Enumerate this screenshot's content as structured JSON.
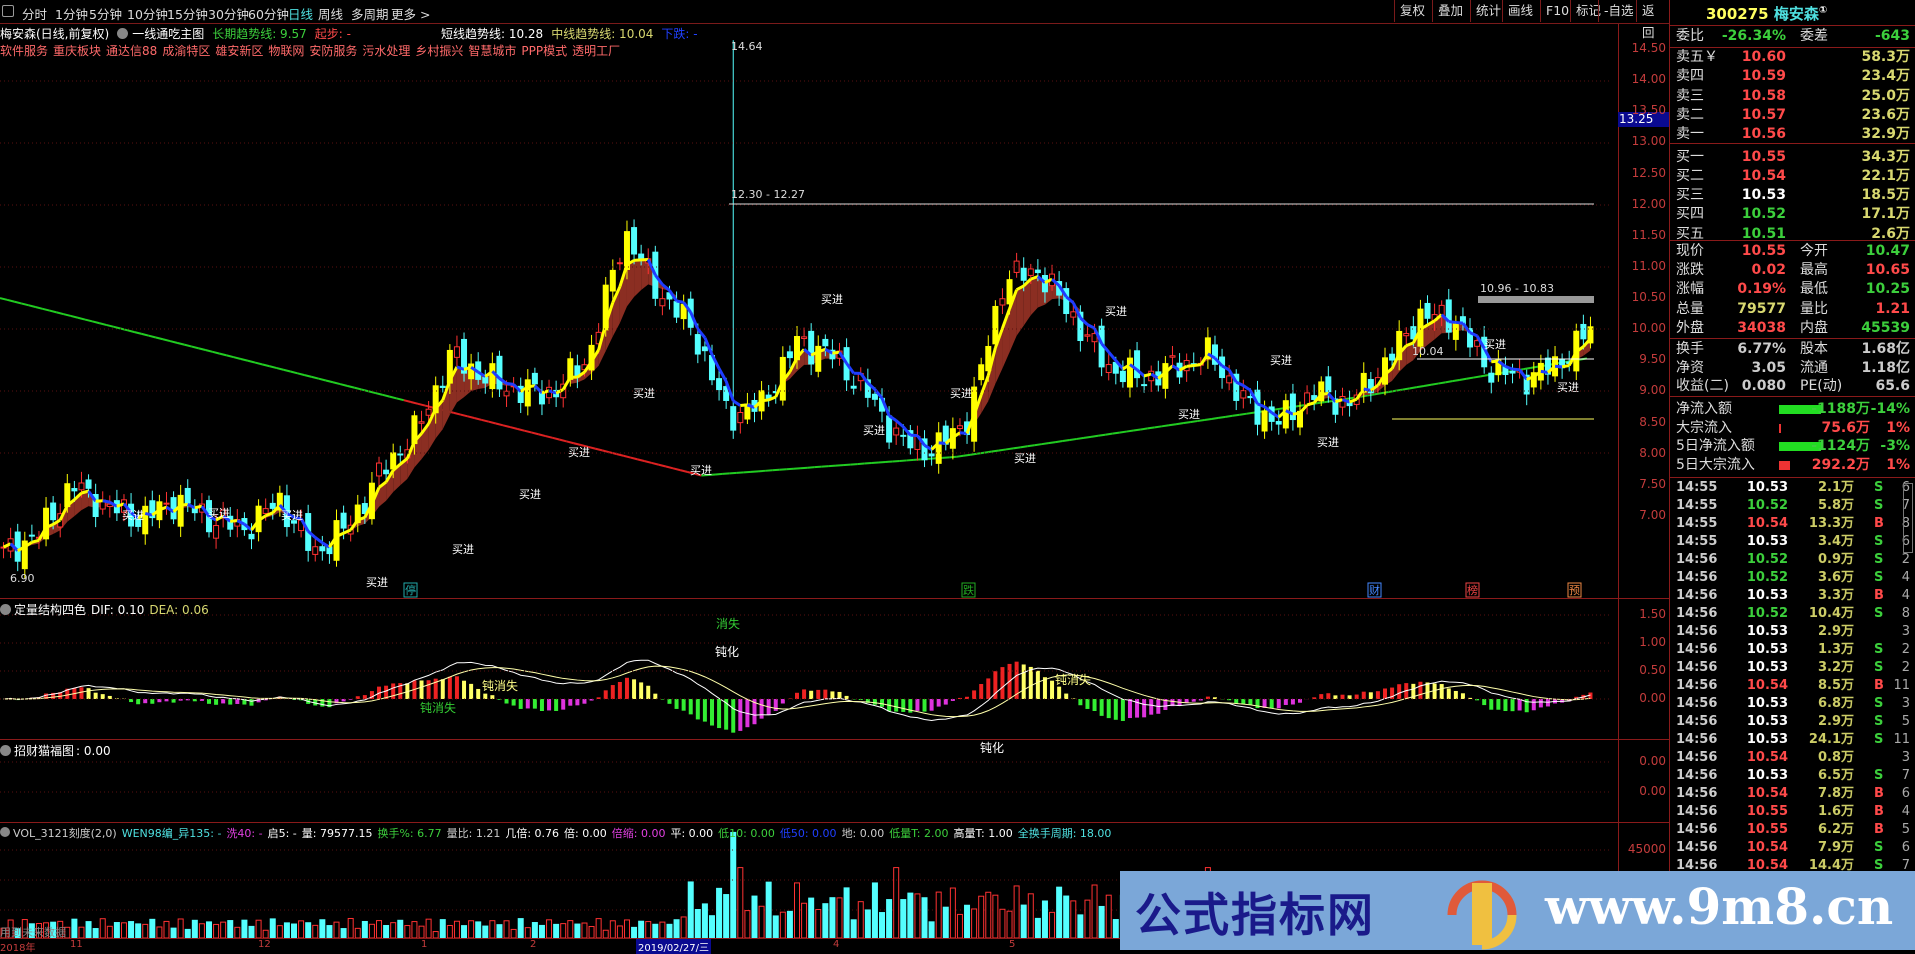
{
  "toolbar": {
    "periods": [
      "分时",
      "1分钟",
      "5分钟",
      "10分钟",
      "15分钟",
      "30分钟",
      "60分钟",
      "日线",
      "周线",
      "多周期",
      "更多 >"
    ],
    "active_period": "日线",
    "buttons": [
      "复权",
      "叠加",
      "统计",
      "画线",
      "F10",
      "标记",
      "-自选",
      "返回"
    ]
  },
  "chart_header": {
    "stock": "梅安森(日线,前复权)",
    "formula": "一线通吃主图",
    "long_trend": "长期趋势线: 9.57",
    "start": "起步: -",
    "short_trend": "短线趋势线: 10.28",
    "mid_trend": "中线趋势线: 10.04",
    "fall": "下跌: -"
  },
  "concepts": [
    "软件服务",
    "重庆板块",
    "通达信88",
    "成渝特区",
    "雄安新区",
    "物联网",
    "安防服务",
    "污水处理",
    "乡村振兴",
    "智慧城市",
    "PPP模式",
    "透明工厂"
  ],
  "price_axis": {
    "ticks": [
      "14.50",
      "14.00",
      "13.50",
      "13.00",
      "12.50",
      "12.00",
      "11.50",
      "11.00",
      "10.50",
      "10.00",
      "9.50",
      "9.00",
      "8.50",
      "8.00",
      "7.50",
      "7.00"
    ],
    "cursor_value": "13.25"
  },
  "main_chart": {
    "close_path": [
      6.4,
      6.7,
      7.5,
      7.15,
      6.95,
      7.25,
      6.95,
      6.8,
      7.25,
      6.4,
      6.85,
      7.75,
      8.4,
      9.6,
      9.2,
      9.0,
      9.0,
      9.6,
      11.55,
      10.6,
      10.0,
      8.6,
      8.8,
      9.8,
      9.6,
      9.0,
      8.2,
      8.05,
      8.6,
      10.8,
      10.95,
      10.2,
      9.4,
      9.2,
      9.4,
      9.6,
      8.8,
      8.5,
      9.0,
      8.8,
      9.4,
      10.2,
      10.2,
      9.4,
      9.2,
      9.4,
      10.0
    ],
    "buy_label": "买进",
    "high_label": "14.64",
    "range_label_1": "12.30 - 12.27",
    "range_label_2": "10.96 - 10.83",
    "line_label": "10.04",
    "low_label": "6.90",
    "events": [
      "停",
      "跌",
      "财",
      "榜",
      "预"
    ],
    "colors": {
      "up": "#ff3232",
      "down": "#54ffff",
      "long_ma": "#22cc22",
      "rise": "#ffff00",
      "fall": "#1e3cff",
      "fill": "#8b2e22"
    }
  },
  "macd": {
    "title": "定量结构四色",
    "dif": "DIF: 0.10",
    "dea": "DEA: 0.06",
    "ticks": [
      "1.50",
      "1.00",
      "0.50",
      "0.00"
    ],
    "labels": [
      "消失",
      "钝化",
      "钝消失",
      "钝消失",
      "钝化",
      "钝消失"
    ]
  },
  "panel2": {
    "title": "招财猫福图",
    "value": ": 0.00",
    "ticks": [
      "0.00",
      "0.00"
    ]
  },
  "volume": {
    "items": [
      {
        "text": "VOL_3121刻度(2,0)",
        "cls": "gry"
      },
      {
        "text": "WEN98编_异135: -",
        "cls": "cyn"
      },
      {
        "text": "洗40: -",
        "cls": "mag"
      },
      {
        "text": "启5: -",
        "cls": "wht"
      },
      {
        "text": "量: 79577.15",
        "cls": "wht"
      },
      {
        "text": "换手%: 6.77",
        "cls": "grn"
      },
      {
        "text": "量比: 1.21",
        "cls": "gry"
      },
      {
        "text": "几倍: 0.76",
        "cls": "wht"
      },
      {
        "text": "倍: 0.00",
        "cls": "wht"
      },
      {
        "text": "倍缩: 0.00",
        "cls": "mag"
      },
      {
        "text": "平: 0.00",
        "cls": "wht"
      },
      {
        "text": "低10: 0.00",
        "cls": "grn"
      },
      {
        "text": "低50: 0.00",
        "cls": "blu"
      },
      {
        "text": "地: 0.00",
        "cls": "gry"
      },
      {
        "text": "低量T: 2.00",
        "cls": "grn"
      },
      {
        "text": "高量T: 1.00",
        "cls": "wht"
      },
      {
        "text": "全换手周期: 18.00",
        "cls": "cyn"
      }
    ],
    "tick": "45000",
    "future_note": "用到未来数据"
  },
  "x_axis": {
    "labels": [
      "2018年",
      "11",
      "12",
      "1",
      "2",
      "2019/02/27/三",
      "4",
      "5",
      "6",
      "7"
    ]
  },
  "quote": {
    "code": "300275",
    "name": "梅安森",
    "badge": "①",
    "weibi": {
      "l": "委比",
      "v": "-26.34%",
      "l2": "委差",
      "v2": "-643"
    },
    "book": [
      {
        "l": "卖五￥",
        "p": "10.60",
        "q": "58.3万",
        "c": "red"
      },
      {
        "l": "卖四",
        "p": "10.59",
        "q": "23.4万",
        "c": "red"
      },
      {
        "l": "卖三",
        "p": "10.58",
        "q": "25.0万",
        "c": "red"
      },
      {
        "l": "卖二",
        "p": "10.57",
        "q": "23.6万",
        "c": "red"
      },
      {
        "l": "卖一",
        "p": "10.56",
        "q": "32.9万",
        "c": "red"
      },
      {
        "l": "买一",
        "p": "10.55",
        "q": "34.3万",
        "c": "red"
      },
      {
        "l": "买二",
        "p": "10.54",
        "q": "22.1万",
        "c": "red"
      },
      {
        "l": "买三",
        "p": "10.53",
        "q": "18.5万",
        "c": "wht"
      },
      {
        "l": "买四",
        "p": "10.52",
        "q": "17.1万",
        "c": "grn"
      },
      {
        "l": "买五",
        "p": "10.51",
        "q": "2.6万",
        "c": "grn"
      }
    ],
    "stats": [
      {
        "l": "现价",
        "v": "10.55",
        "c": "red",
        "l2": "今开",
        "v2": "10.47",
        "c2": "grn"
      },
      {
        "l": "涨跌",
        "v": "0.02",
        "c": "red",
        "l2": "最高",
        "v2": "10.65",
        "c2": "red"
      },
      {
        "l": "涨幅",
        "v": "0.19%",
        "c": "red",
        "l2": "最低",
        "v2": "10.25",
        "c2": "grn"
      },
      {
        "l": "总量",
        "v": "79577",
        "c": "yel",
        "l2": "量比",
        "v2": "1.21",
        "c2": "red"
      },
      {
        "l": "外盘",
        "v": "34038",
        "c": "red",
        "l2": "内盘",
        "v2": "45539",
        "c2": "grn"
      }
    ],
    "fund": [
      {
        "l": "换手",
        "v": "6.77%",
        "l2": "股本",
        "v2": "1.68亿"
      },
      {
        "l": "净资",
        "v": "3.05",
        "l2": "流通",
        "v2": "1.18亿"
      },
      {
        "l": "收益(二)",
        "v": "0.080",
        "l2": "PE(动)",
        "v2": "65.6"
      }
    ],
    "flows": [
      {
        "l": "净流入额",
        "bar": 1.0,
        "bar_color": "#22dd22",
        "v": "-1188万",
        "pct": "-14%",
        "c": "grn"
      },
      {
        "l": "大宗流入",
        "bar": 0.03,
        "bar_color": "#ee3333",
        "v": "75.6万",
        "pct": "1%",
        "c": "red"
      },
      {
        "l": "5日净流入额",
        "bar": 1.0,
        "bar_color": "#22dd22",
        "v": "-1124万",
        "pct": "-3%",
        "c": "grn"
      },
      {
        "l": "5日大宗流入",
        "bar": 0.25,
        "bar_color": "#ee3333",
        "v": "292.2万",
        "pct": "1%",
        "c": "red"
      }
    ],
    "trades": [
      [
        "14:55",
        "10.53",
        "2.1万",
        "S",
        "6"
      ],
      [
        "14:55",
        "10.52",
        "5.8万",
        "S",
        "7"
      ],
      [
        "14:55",
        "10.54",
        "13.3万",
        "B",
        "8"
      ],
      [
        "14:55",
        "10.53",
        "3.4万",
        "S",
        "6"
      ],
      [
        "14:56",
        "10.52",
        "0.9万",
        "S",
        "2"
      ],
      [
        "14:56",
        "10.52",
        "3.6万",
        "S",
        "4"
      ],
      [
        "14:56",
        "10.53",
        "3.3万",
        "B",
        "4"
      ],
      [
        "14:56",
        "10.52",
        "10.4万",
        "S",
        "8"
      ],
      [
        "14:56",
        "10.53",
        "2.9万",
        "",
        "3"
      ],
      [
        "14:56",
        "10.53",
        "1.3万",
        "S",
        "2"
      ],
      [
        "14:56",
        "10.53",
        "3.2万",
        "S",
        "2"
      ],
      [
        "14:56",
        "10.54",
        "8.5万",
        "B",
        "11"
      ],
      [
        "14:56",
        "10.53",
        "6.8万",
        "S",
        "3"
      ],
      [
        "14:56",
        "10.53",
        "2.9万",
        "S",
        "5"
      ],
      [
        "14:56",
        "10.53",
        "24.1万",
        "S",
        "11"
      ],
      [
        "14:56",
        "10.54",
        "0.8万",
        "",
        "3"
      ],
      [
        "14:56",
        "10.53",
        "6.5万",
        "S",
        "7"
      ],
      [
        "14:56",
        "10.54",
        "7.8万",
        "B",
        "6"
      ],
      [
        "14:56",
        "10.55",
        "1.6万",
        "B",
        "4"
      ],
      [
        "14:56",
        "10.55",
        "6.2万",
        "B",
        "5"
      ],
      [
        "14:56",
        "10.54",
        "7.9万",
        "S",
        "6"
      ],
      [
        "14:56",
        "10.54",
        "14.4万",
        "S",
        "7"
      ]
    ]
  },
  "watermark": {
    "cn": "公式指标网",
    "url": "www.9m8.cn",
    "logo_text": "www.9m8.cn"
  }
}
